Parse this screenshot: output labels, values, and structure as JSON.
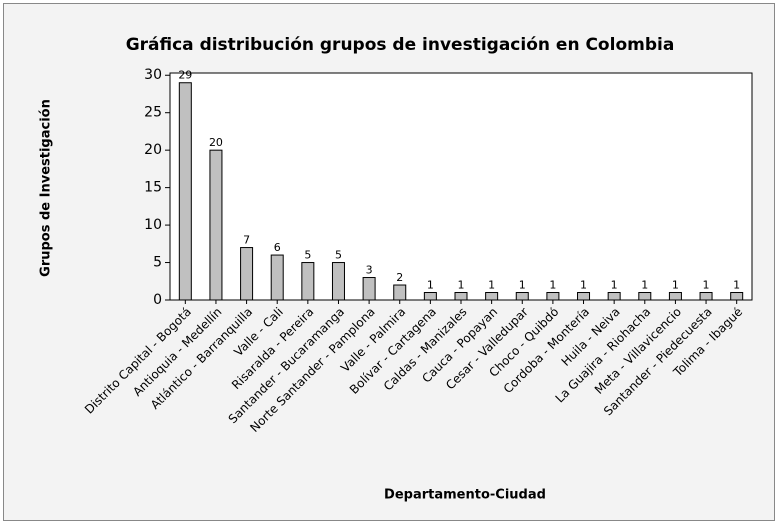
{
  "chart_data": {
    "type": "bar",
    "title": "Gráfica distribución grupos de investigación en Colombia",
    "xlabel": "Departamento-Ciudad",
    "ylabel": "Grupos de Investigación",
    "categories": [
      "Distrito Capital - Bogotá",
      "Antioquia - Medellín",
      "Atlántico - Barranquilla",
      "Valle - Cali",
      "Risaralda - Pereira",
      "Santander - Bucaramanga",
      "Norte Santander - Pamplona",
      "Valle - Palmira",
      "Bolívar - Cartagena",
      "Caldas - Manizales",
      "Cauca - Popayan",
      "Cesar - Valledupar",
      "Choco - Quibdó",
      "Cordoba - Montería",
      "Huila - Neiva",
      "La Guajira - Riohacha",
      "Meta - Villavicencio",
      "Santander - Piedecuesta",
      "Tolima - Ibagué"
    ],
    "values": [
      29,
      20,
      7,
      6,
      5,
      5,
      3,
      2,
      1,
      1,
      1,
      1,
      1,
      1,
      1,
      1,
      1,
      1,
      1
    ],
    "color": "#c0c0c0",
    "ylim": [
      0,
      30.3
    ],
    "yticks": [
      0,
      5,
      10,
      15,
      20,
      25,
      30
    ]
  }
}
